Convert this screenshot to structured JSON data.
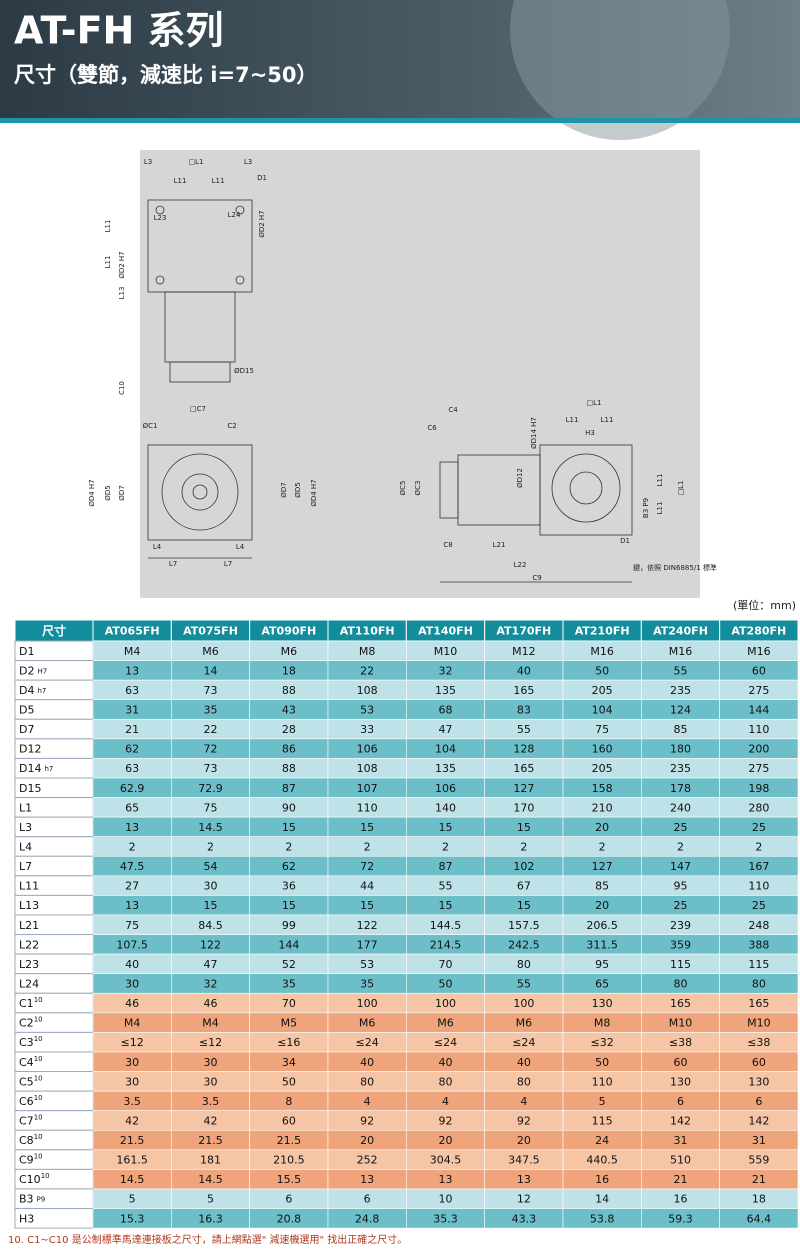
{
  "header": {
    "title": "AT-FH 系列",
    "subtitle": "尺寸（雙節，減速比 i=7~50）"
  },
  "drawing": {
    "labels": [
      "L3",
      "□L1",
      "L3",
      "L11",
      "L11",
      "D1",
      "L23",
      "L24",
      "ØD2 H7",
      "L11",
      "L11",
      "ØD2 H7",
      "L13",
      "ØD15",
      "C10",
      "□C7",
      "ØC1",
      "C2",
      "ØD4 H7",
      "ØD5",
      "ØD7",
      "ØD7",
      "ØD5",
      "ØD4 H7",
      "L4",
      "L4",
      "L7",
      "L7",
      "C4",
      "C6",
      "ØC5",
      "ØC3",
      "ØD14 H7",
      "ØD12",
      "□L1",
      "L11",
      "L11",
      "H3",
      "L11",
      "L11",
      "□L1",
      "B3 P9",
      "D1",
      "C8",
      "L21",
      "L22",
      "C9",
      "鍵，依照 DIN6885/1 標準"
    ]
  },
  "unit": "(單位：mm)",
  "table": {
    "corner": "尺寸",
    "columns": [
      "AT065FH",
      "AT075FH",
      "AT090FH",
      "AT110FH",
      "AT140FH",
      "AT170FH",
      "AT210FH",
      "AT240FH",
      "AT280FH"
    ],
    "rows": [
      {
        "label": "D1",
        "values": [
          "M4",
          "M6",
          "M6",
          "M8",
          "M10",
          "M12",
          "M16",
          "M16",
          "M16"
        ]
      },
      {
        "label": "D2",
        "sub": "H7",
        "values": [
          13,
          14,
          18,
          22,
          32,
          40,
          50,
          55,
          60
        ]
      },
      {
        "label": "D4",
        "sub": "h7",
        "values": [
          63,
          73,
          88,
          108,
          135,
          165,
          205,
          235,
          275
        ]
      },
      {
        "label": "D5",
        "values": [
          31,
          35,
          43,
          53,
          68,
          83,
          104,
          124,
          144
        ]
      },
      {
        "label": "D7",
        "values": [
          21,
          22,
          28,
          33,
          47,
          55,
          75,
          85,
          110
        ]
      },
      {
        "label": "D12",
        "values": [
          62,
          72,
          86,
          106,
          104,
          128,
          160,
          180,
          200
        ]
      },
      {
        "label": "D14",
        "sub": "h7",
        "values": [
          63,
          73,
          88,
          108,
          135,
          165,
          205,
          235,
          275
        ]
      },
      {
        "label": "D15",
        "values": [
          62.9,
          72.9,
          87,
          107,
          106,
          127,
          158,
          178,
          198
        ]
      },
      {
        "label": "L1",
        "values": [
          65,
          75,
          90,
          110,
          140,
          170,
          210,
          240,
          280
        ]
      },
      {
        "label": "L3",
        "values": [
          13,
          14.5,
          15,
          15,
          15,
          15,
          20,
          25,
          25
        ]
      },
      {
        "label": "L4",
        "values": [
          2,
          2,
          2,
          2,
          2,
          2,
          2,
          2,
          2
        ]
      },
      {
        "label": "L7",
        "values": [
          47.5,
          54,
          62,
          72,
          87,
          102,
          127,
          147,
          167
        ]
      },
      {
        "label": "L11",
        "values": [
          27,
          30,
          36,
          44,
          55,
          67,
          85,
          95,
          110
        ]
      },
      {
        "label": "L13",
        "values": [
          13,
          15,
          15,
          15,
          15,
          15,
          20,
          25,
          25
        ]
      },
      {
        "label": "L21",
        "values": [
          75,
          84.5,
          99,
          122,
          144.5,
          157.5,
          206.5,
          239,
          248
        ]
      },
      {
        "label": "L22",
        "values": [
          107.5,
          122,
          144,
          177,
          214.5,
          242.5,
          311.5,
          359,
          388
        ]
      },
      {
        "label": "L23",
        "values": [
          40,
          47,
          52,
          53,
          70,
          80,
          95,
          115,
          115
        ]
      },
      {
        "label": "L24",
        "values": [
          30,
          32,
          35,
          35,
          50,
          55,
          65,
          80,
          80
        ]
      },
      {
        "label": "C1",
        "sup": "10",
        "values": [
          46,
          46,
          70,
          100,
          100,
          100,
          130,
          165,
          165
        ]
      },
      {
        "label": "C2",
        "sup": "10",
        "values": [
          "M4",
          "M4",
          "M5",
          "M6",
          "M6",
          "M6",
          "M8",
          "M10",
          "M10"
        ]
      },
      {
        "label": "C3",
        "sup": "10",
        "values": [
          "≤12",
          "≤12",
          "≤16",
          "≤24",
          "≤24",
          "≤24",
          "≤32",
          "≤38",
          "≤38"
        ]
      },
      {
        "label": "C4",
        "sup": "10",
        "values": [
          30,
          30,
          34,
          40,
          40,
          40,
          50,
          60,
          60
        ]
      },
      {
        "label": "C5",
        "sup": "10",
        "values": [
          30,
          30,
          50,
          80,
          80,
          80,
          110,
          130,
          130
        ]
      },
      {
        "label": "C6",
        "sup": "10",
        "values": [
          3.5,
          3.5,
          8,
          4,
          4,
          4,
          5,
          6,
          6
        ]
      },
      {
        "label": "C7",
        "sup": "10",
        "values": [
          42,
          42,
          60,
          92,
          92,
          92,
          115,
          142,
          142
        ]
      },
      {
        "label": "C8",
        "sup": "10",
        "values": [
          21.5,
          21.5,
          21.5,
          20,
          20,
          20,
          24,
          31,
          31
        ]
      },
      {
        "label": "C9",
        "sup": "10",
        "values": [
          161.5,
          181,
          210.5,
          252,
          304.5,
          347.5,
          440.5,
          510,
          559
        ]
      },
      {
        "label": "C10",
        "sup": "10",
        "values": [
          14.5,
          14.5,
          15.5,
          13,
          13,
          13,
          16,
          21,
          21
        ]
      },
      {
        "label": "B3",
        "sub": "P9",
        "values": [
          5,
          5,
          6,
          6,
          10,
          12,
          14,
          16,
          18
        ]
      },
      {
        "label": "H3",
        "values": [
          15.3,
          16.3,
          20.8,
          24.8,
          35.3,
          43.3,
          53.8,
          59.3,
          64.4
        ]
      }
    ]
  },
  "footnote": "10. C1~C10 是公制標準馬達連接板之尺寸，請上網點選\" 減速機選用\" 找出正確之尺寸。"
}
